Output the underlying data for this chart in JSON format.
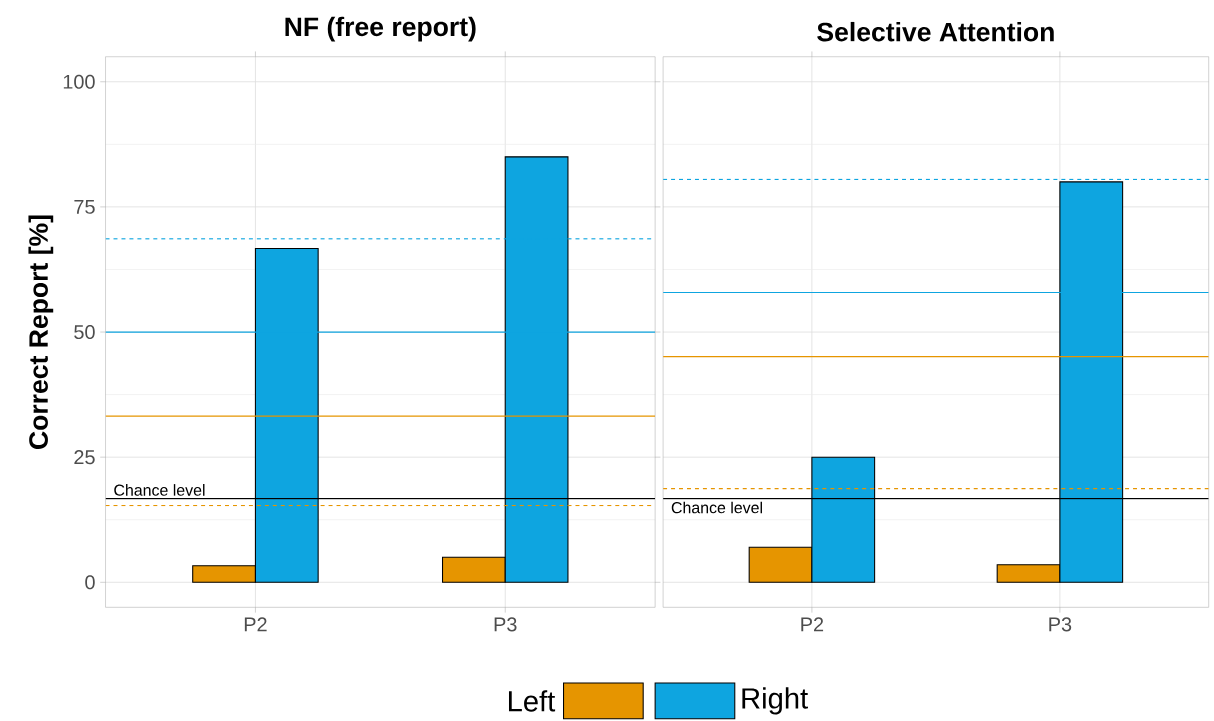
{
  "chart_data": [
    {
      "type": "bar",
      "title": "NF (free report)",
      "ylabel": "Correct Report [%]",
      "categories": [
        "P2",
        "P3"
      ],
      "series": [
        {
          "name": "Left",
          "color": "#e69500",
          "values": [
            3.3,
            5
          ]
        },
        {
          "name": "Right",
          "color": "#0ea5e0",
          "values": [
            66.7,
            85
          ]
        }
      ],
      "ylim": [
        -5,
        105
      ],
      "yticks": [
        0,
        25,
        50,
        75,
        100
      ],
      "grid": true,
      "legend": "bottom",
      "ref_lines": [
        {
          "axis": "y",
          "value": 68.6,
          "color": "#0ea5e0",
          "line_style": "dashed"
        },
        {
          "axis": "y",
          "value": 50,
          "color": "#0ea5e0",
          "line_style": "solid"
        },
        {
          "axis": "y",
          "value": 33.2,
          "color": "#e69500",
          "line_style": "solid"
        },
        {
          "axis": "y",
          "value": 16.7,
          "color": "#000000",
          "line_style": "solid",
          "label": "Chance level"
        },
        {
          "axis": "y",
          "value": 15.3,
          "color": "#e69500",
          "line_style": "dashed"
        }
      ]
    },
    {
      "type": "bar",
      "title": "Selective Attention",
      "categories": [
        "P2",
        "P3"
      ],
      "series": [
        {
          "color": "#e69500",
          "values": [
            7,
            3.5
          ]
        },
        {
          "color": "#0ea5e0",
          "values": [
            25,
            80
          ]
        }
      ],
      "ylim": [
        -5,
        105
      ],
      "yticks": [
        0,
        25,
        50,
        75,
        100
      ],
      "grid": true,
      "tick_labels": "x",
      "ref_lines": [
        {
          "axis": "y",
          "value": 80.5,
          "color": "#0ea5e0",
          "line_style": "dashed"
        },
        {
          "axis": "y",
          "value": 57.9,
          "color": "#0ea5e0",
          "line_style": "solid"
        },
        {
          "axis": "y",
          "value": 45.1,
          "color": "#e69500",
          "line_style": "solid"
        },
        {
          "axis": "y",
          "value": 18.7,
          "color": "#e69500",
          "line_style": "dashed"
        },
        {
          "axis": "y",
          "value": 16.7,
          "color": "#000000",
          "line_style": "solid",
          "label": "Chance level"
        }
      ]
    }
  ]
}
